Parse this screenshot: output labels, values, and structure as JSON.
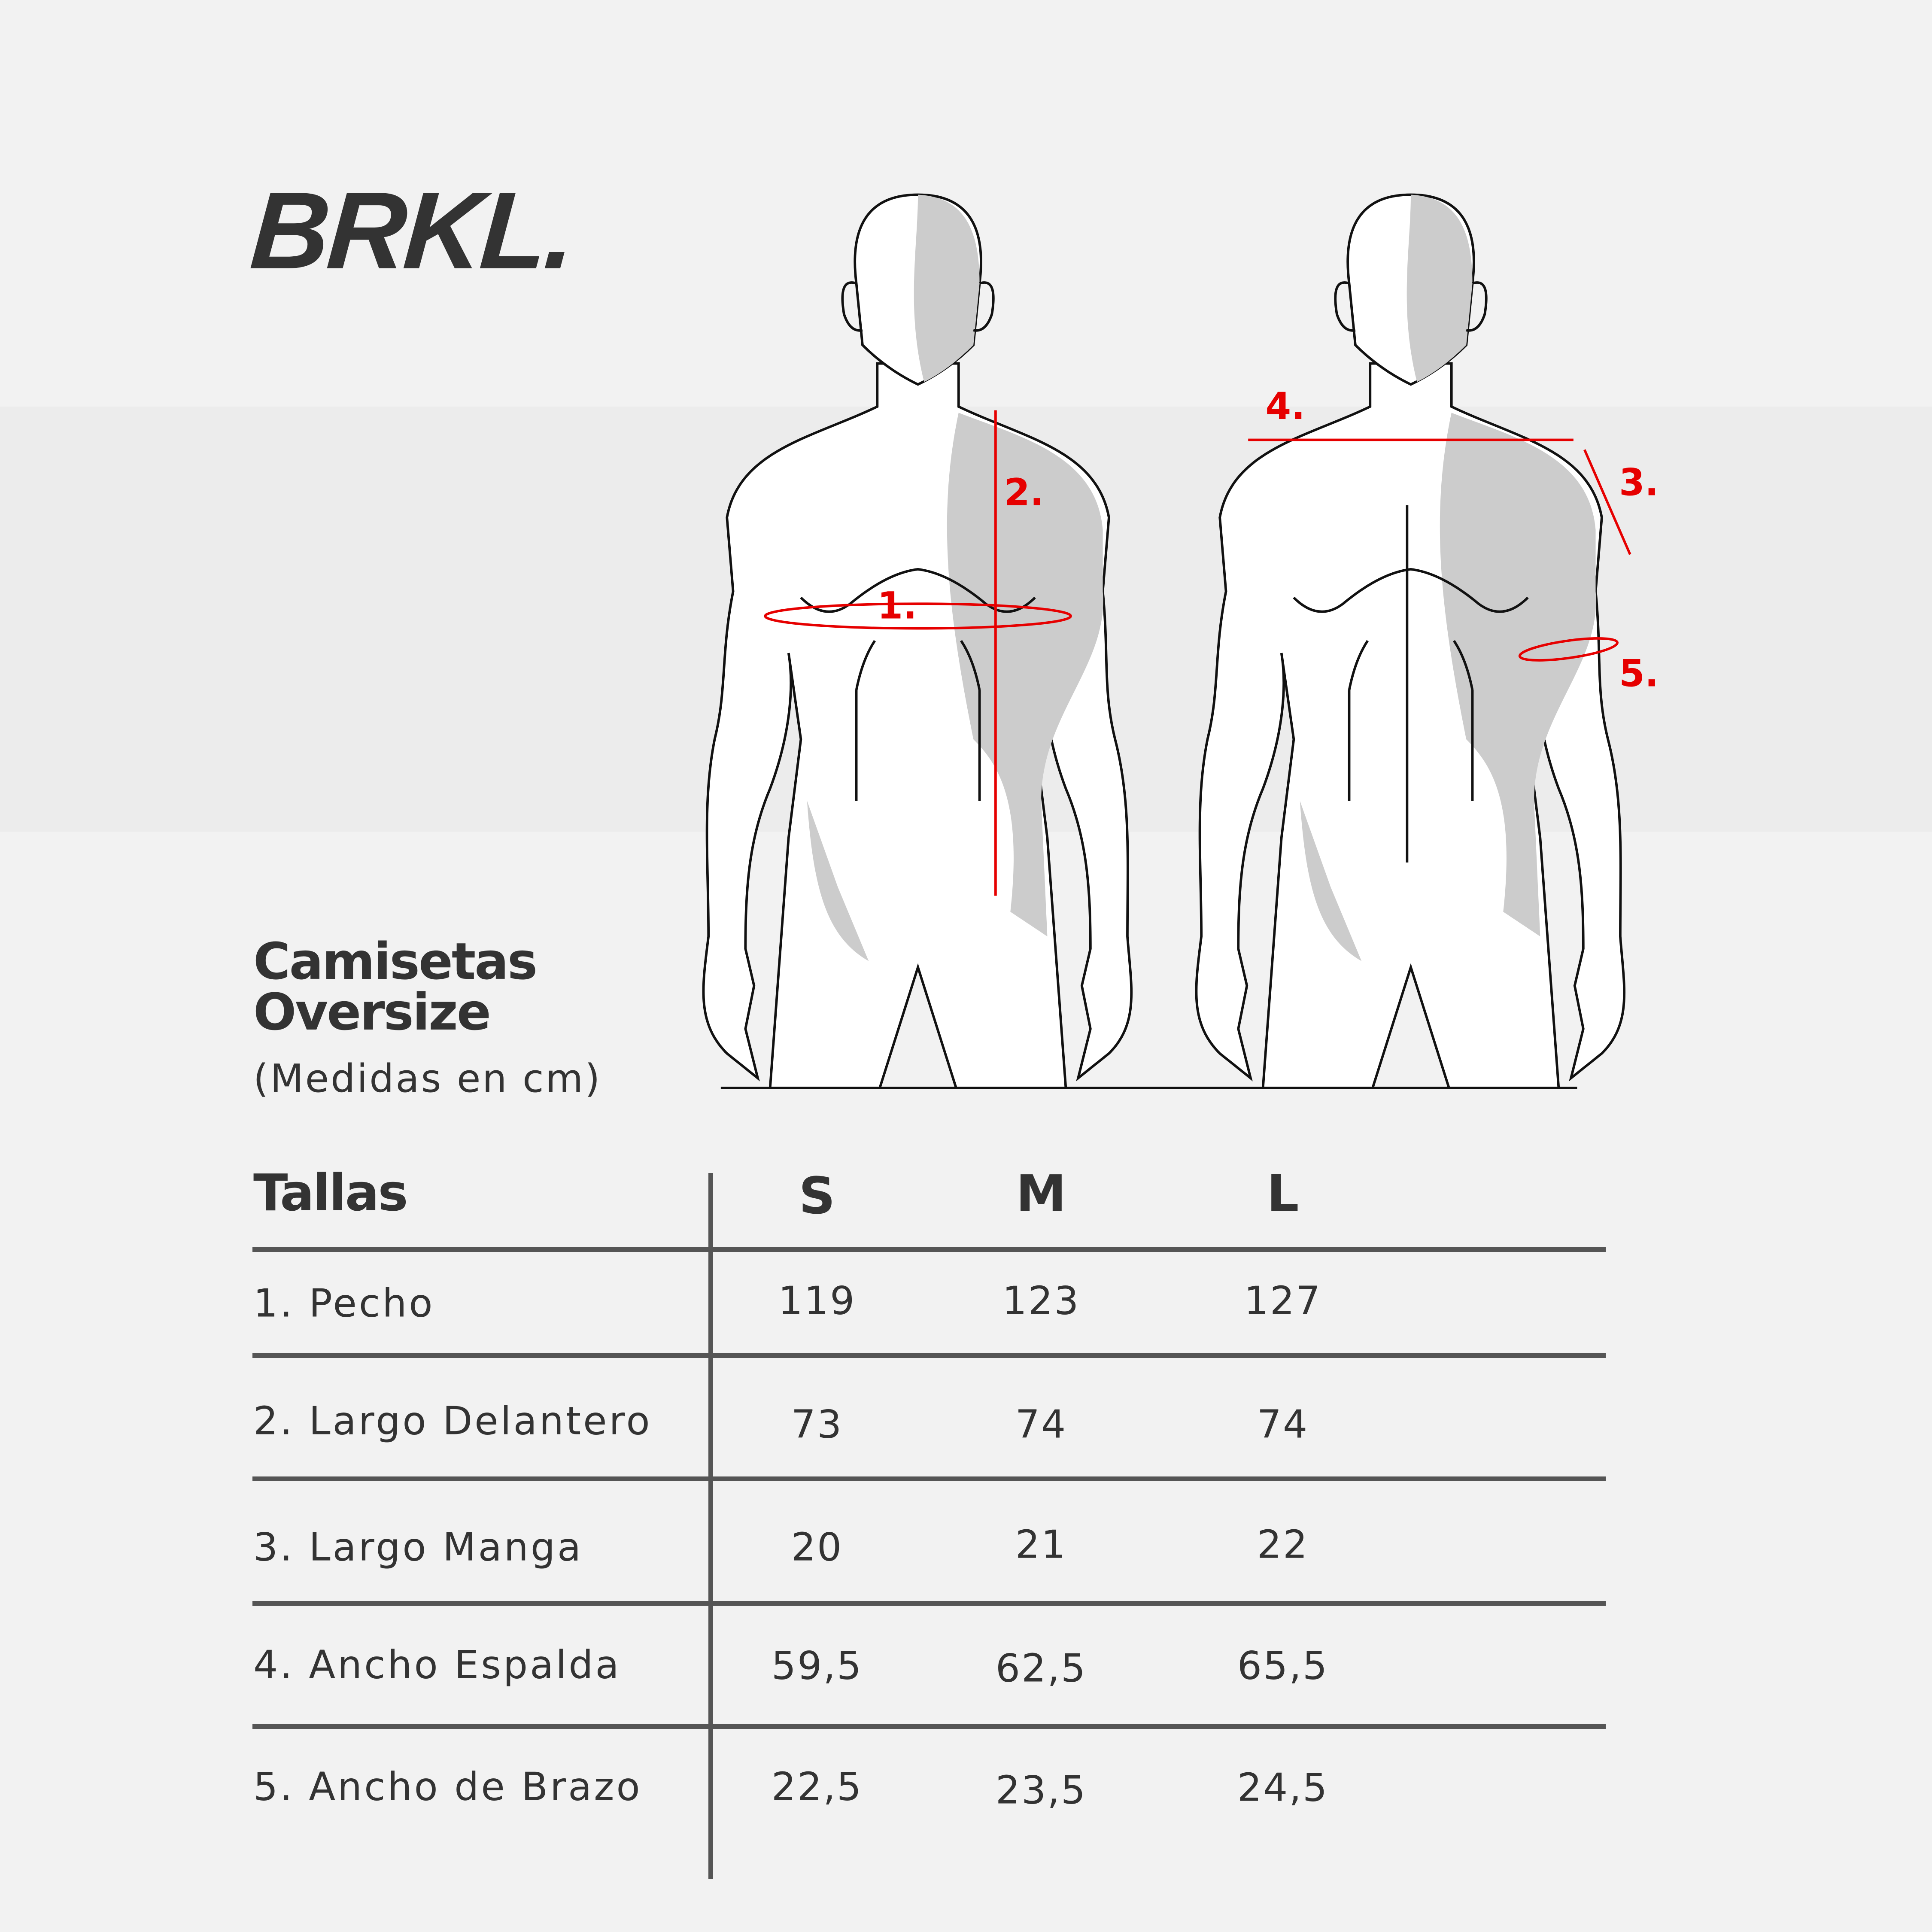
{
  "brand": {
    "logo": "BRKL."
  },
  "heading": {
    "line1": "Camisetas",
    "line2": "Oversize",
    "subtitle": "(Medidas en cm)"
  },
  "figure": {
    "marks": {
      "chest": "1.",
      "front_length": "2.",
      "sleeve_length": "3.",
      "back_width": "4.",
      "arm_width": "5."
    },
    "colors": {
      "measure": "#e60000",
      "outline": "#111111",
      "shade": "#cccccc"
    }
  },
  "table": {
    "header": {
      "label": "Tallas",
      "sizes": [
        "S",
        "M",
        "L"
      ]
    },
    "rows": [
      {
        "label": "1. Pecho",
        "values": [
          "119",
          "123",
          "127"
        ]
      },
      {
        "label": "2. Largo Delantero",
        "values": [
          "73",
          "74",
          "74"
        ]
      },
      {
        "label": "3. Largo Manga",
        "values": [
          "20",
          "21",
          "22"
        ]
      },
      {
        "label": "4. Ancho Espalda",
        "values": [
          "59,5",
          "62,5",
          "65,5"
        ]
      },
      {
        "label": "5. Ancho de Brazo",
        "values": [
          "22,5",
          "23,5",
          "24,5"
        ]
      }
    ]
  }
}
